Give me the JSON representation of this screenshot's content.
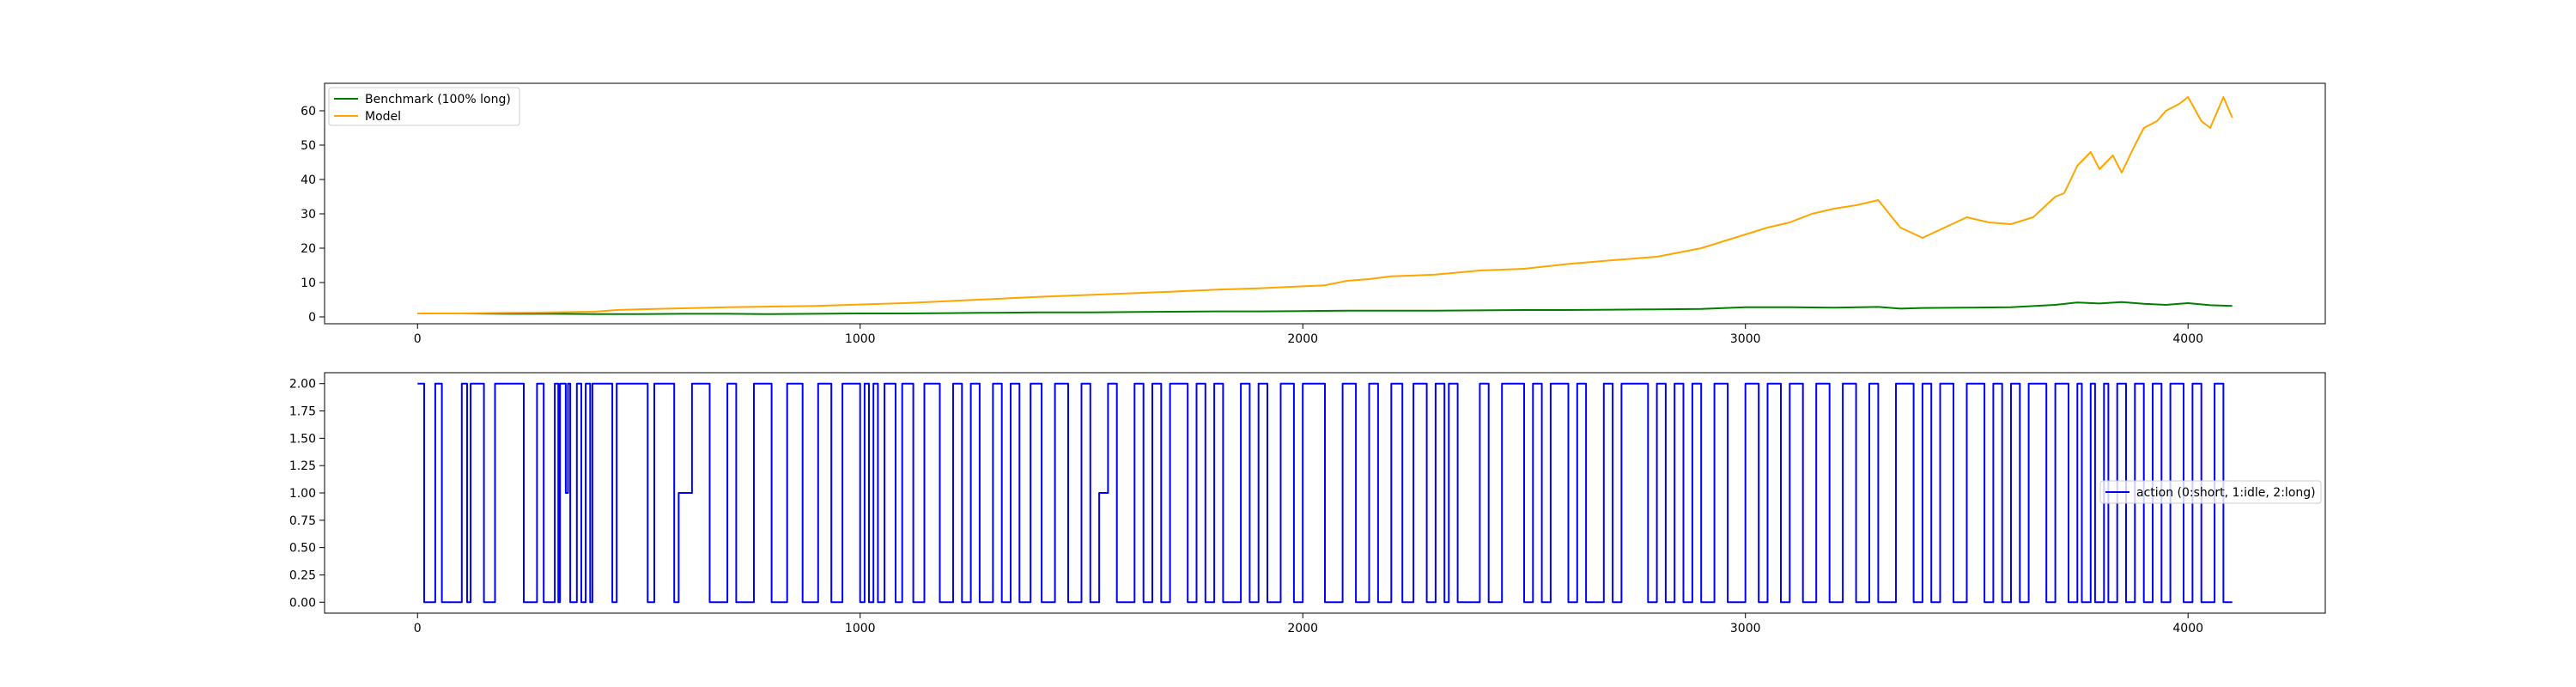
{
  "chart_data": [
    {
      "type": "line",
      "title": "",
      "xlabel": "",
      "ylabel": "",
      "xlim": [
        -210,
        4310
      ],
      "ylim": [
        -2,
        68
      ],
      "x_ticks": [
        0,
        1000,
        2000,
        3000,
        4000
      ],
      "y_ticks": [
        0,
        10,
        20,
        30,
        40,
        50,
        60
      ],
      "x_tick_labels": [
        "0",
        "1000",
        "2000",
        "3000",
        "4000"
      ],
      "y_tick_labels": [
        "0",
        "10",
        "20",
        "30",
        "40",
        "50",
        "60"
      ],
      "grid": false,
      "legend_placement": "upper-left",
      "series": [
        {
          "name": "Benchmark (100% long)",
          "color": "#008000",
          "x": [
            0,
            100,
            200,
            300,
            400,
            500,
            600,
            700,
            800,
            900,
            1000,
            1100,
            1200,
            1300,
            1400,
            1500,
            1600,
            1700,
            1800,
            1900,
            2000,
            2100,
            2200,
            2300,
            2400,
            2500,
            2600,
            2700,
            2800,
            2900,
            3000,
            3100,
            3200,
            3300,
            3350,
            3400,
            3500,
            3600,
            3700,
            3750,
            3800,
            3850,
            3900,
            3950,
            4000,
            4050,
            4100
          ],
          "y": [
            1.0,
            1.0,
            0.9,
            0.9,
            0.8,
            0.8,
            0.9,
            0.9,
            0.8,
            0.9,
            1.0,
            1.0,
            1.1,
            1.2,
            1.3,
            1.3,
            1.4,
            1.5,
            1.6,
            1.6,
            1.7,
            1.8,
            1.8,
            1.8,
            1.9,
            2.0,
            2.0,
            2.1,
            2.2,
            2.3,
            2.8,
            2.8,
            2.7,
            2.9,
            2.4,
            2.6,
            2.7,
            2.8,
            3.5,
            4.2,
            3.9,
            4.3,
            3.8,
            3.5,
            4.0,
            3.4,
            3.2
          ]
        },
        {
          "name": "Model",
          "color": "#ffa500",
          "x": [
            0,
            100,
            200,
            300,
            400,
            450,
            500,
            600,
            700,
            800,
            900,
            1000,
            1100,
            1200,
            1300,
            1400,
            1500,
            1600,
            1700,
            1800,
            1900,
            2000,
            2050,
            2100,
            2150,
            2200,
            2300,
            2400,
            2500,
            2600,
            2700,
            2800,
            2900,
            3000,
            3050,
            3100,
            3150,
            3200,
            3250,
            3300,
            3350,
            3400,
            3450,
            3500,
            3550,
            3600,
            3650,
            3700,
            3720,
            3750,
            3780,
            3800,
            3830,
            3850,
            3880,
            3900,
            3930,
            3950,
            3980,
            4000,
            4030,
            4050,
            4080,
            4100
          ],
          "y": [
            1.0,
            1.0,
            1.2,
            1.3,
            1.5,
            2.0,
            2.2,
            2.5,
            2.8,
            3.0,
            3.2,
            3.6,
            4.0,
            4.6,
            5.2,
            5.8,
            6.3,
            6.8,
            7.3,
            7.9,
            8.3,
            8.9,
            9.2,
            10.5,
            11.0,
            11.8,
            12.3,
            13.5,
            14.0,
            15.4,
            16.5,
            17.5,
            20.0,
            24.0,
            26.0,
            27.5,
            30.0,
            31.5,
            32.5,
            34.0,
            26.0,
            23.0,
            26.0,
            29.0,
            27.5,
            27.0,
            29.0,
            35.0,
            36.0,
            44.0,
            48.0,
            43.0,
            47.0,
            42.0,
            50.0,
            55.0,
            57.0,
            60.0,
            62.0,
            64.0,
            57.0,
            55.0,
            64.0,
            58.0
          ]
        }
      ]
    },
    {
      "type": "line",
      "title": "",
      "xlabel": "",
      "ylabel": "",
      "xlim": [
        -210,
        4310
      ],
      "ylim": [
        -0.1,
        2.1
      ],
      "x_ticks": [
        0,
        1000,
        2000,
        3000,
        4000
      ],
      "y_ticks": [
        0,
        0.25,
        0.5,
        0.75,
        1.0,
        1.25,
        1.5,
        1.75,
        2.0
      ],
      "x_tick_labels": [
        "0",
        "1000",
        "2000",
        "3000",
        "4000"
      ],
      "y_tick_labels": [
        "0.00",
        "0.25",
        "0.50",
        "0.75",
        "1.00",
        "1.25",
        "1.50",
        "1.75",
        "2.00"
      ],
      "grid": false,
      "legend_placement": "center-right",
      "series": [
        {
          "name": "action (0:short, 1:idle, 2:long)",
          "color": "#0000ff",
          "step": true,
          "x": [
            0,
            15,
            20,
            40,
            55,
            70,
            100,
            112,
            120,
            135,
            150,
            175,
            240,
            255,
            270,
            285,
            310,
            318,
            322,
            335,
            340,
            345,
            360,
            370,
            380,
            390,
            395,
            410,
            440,
            450,
            520,
            535,
            580,
            590,
            620,
            660,
            700,
            720,
            760,
            800,
            835,
            870,
            905,
            935,
            960,
            1000,
            1010,
            1020,
            1030,
            1040,
            1055,
            1080,
            1095,
            1120,
            1145,
            1180,
            1210,
            1230,
            1250,
            1270,
            1300,
            1320,
            1340,
            1360,
            1385,
            1410,
            1440,
            1470,
            1500,
            1520,
            1540,
            1560,
            1580,
            1620,
            1640,
            1660,
            1680,
            1700,
            1740,
            1760,
            1780,
            1800,
            1820,
            1860,
            1880,
            1900,
            1920,
            1950,
            1980,
            2000,
            2050,
            2090,
            2120,
            2150,
            2170,
            2200,
            2225,
            2250,
            2280,
            2300,
            2320,
            2330,
            2350,
            2400,
            2420,
            2450,
            2500,
            2520,
            2540,
            2560,
            2600,
            2620,
            2640,
            2680,
            2700,
            2720,
            2780,
            2800,
            2820,
            2840,
            2860,
            2880,
            2900,
            2930,
            2960,
            3000,
            3030,
            3050,
            3080,
            3100,
            3130,
            3160,
            3190,
            3220,
            3250,
            3280,
            3300,
            3340,
            3380,
            3400,
            3420,
            3440,
            3470,
            3500,
            3540,
            3560,
            3580,
            3600,
            3620,
            3640,
            3680,
            3700,
            3730,
            3750,
            3760,
            3780,
            3790,
            3810,
            3820,
            3840,
            3860,
            3880,
            3900,
            3920,
            3940,
            3960,
            3990,
            4010,
            4030,
            4060,
            4080,
            4100
          ],
          "y": [
            2,
            0,
            0,
            2,
            0,
            0,
            2,
            0,
            2,
            2,
            0,
            2,
            0,
            0,
            2,
            0,
            2,
            0,
            2,
            1,
            2,
            0,
            2,
            0,
            2,
            0,
            2,
            2,
            0,
            2,
            0,
            2,
            0,
            1,
            2,
            0,
            2,
            0,
            2,
            0,
            2,
            0,
            2,
            0,
            2,
            0,
            2,
            0,
            2,
            0,
            2,
            0,
            2,
            0,
            2,
            0,
            2,
            0,
            2,
            0,
            2,
            0,
            2,
            0,
            2,
            0,
            2,
            0,
            2,
            0,
            1,
            2,
            0,
            2,
            0,
            2,
            0,
            2,
            0,
            2,
            0,
            2,
            0,
            2,
            0,
            2,
            0,
            2,
            0,
            2,
            0,
            2,
            0,
            2,
            0,
            2,
            0,
            2,
            0,
            2,
            0,
            2,
            0,
            2,
            0,
            2,
            0,
            2,
            0,
            2,
            0,
            2,
            0,
            2,
            0,
            2,
            0,
            2,
            0,
            2,
            0,
            2,
            0,
            2,
            0,
            2,
            0,
            2,
            0,
            2,
            0,
            2,
            0,
            2,
            0,
            2,
            0,
            2,
            0,
            2,
            0,
            2,
            0,
            2,
            0,
            2,
            0,
            2,
            0,
            2,
            0,
            2,
            0,
            2,
            0,
            2,
            0,
            2,
            0,
            2,
            0,
            2,
            0,
            2,
            0,
            2,
            0,
            2,
            0,
            2,
            0,
            0
          ]
        }
      ]
    }
  ]
}
